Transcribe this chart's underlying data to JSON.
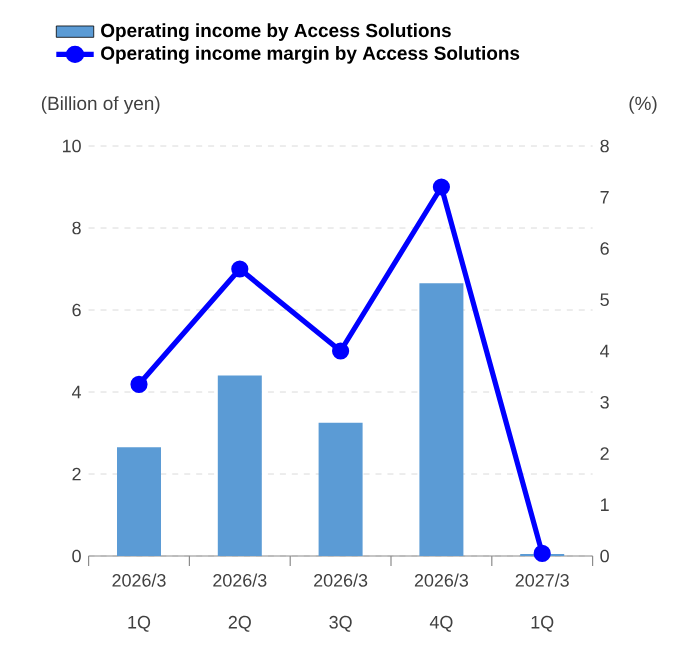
{
  "chart_data": {
    "type": "bar",
    "categories": [
      "2026/3 1Q",
      "2026/3 2Q",
      "2026/3 3Q",
      "2026/3 4Q",
      "2027/3 1Q"
    ],
    "ylabel": "(Billion of yen)",
    "y2label": "(%)",
    "ylim": [
      0,
      10
    ],
    "yticks": [
      0,
      2,
      4,
      6,
      8,
      10
    ],
    "y2lim": [
      0,
      8
    ],
    "y2ticks": [
      0,
      1,
      2,
      3,
      4,
      5,
      6,
      7,
      8
    ],
    "grid": "y",
    "legend": "top left",
    "marker": "circle",
    "series": [
      {
        "name": "Operating income by Access Solutions",
        "color": "#5b9bd5",
        "values": [
          2.65,
          4.4,
          3.25,
          6.65,
          0.05
        ]
      },
      {
        "name": "Operating income margin by Access Solutions",
        "type": "line",
        "axis": "y2",
        "color": "#0000ff",
        "values": [
          3.35,
          5.6,
          4.0,
          7.2,
          0.05
        ]
      }
    ]
  }
}
